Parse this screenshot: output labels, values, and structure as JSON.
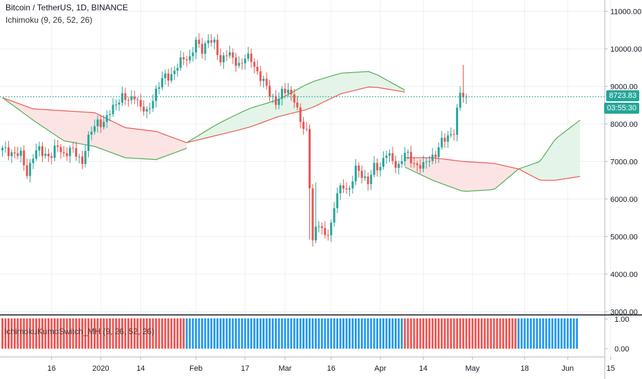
{
  "header": {
    "symbol_line": "Bitcoin / TetherUS, 1D, BINANCE",
    "indicator_line": "Ichimoku (9, 26, 52, 26)"
  },
  "lower_pane": {
    "title": "IchimokuKumoSwitch_MH (9, 26, 52, 26)",
    "ticks": [
      "1.00",
      "0.00"
    ]
  },
  "price_tags": {
    "last_price": "8723.83",
    "countdown": "03:55:30",
    "last_color": "#26a69a"
  },
  "colors": {
    "up": "#26a69a",
    "down": "#ef5350",
    "kumo_bull_fill": "#e4f4e8",
    "kumo_bear_fill": "#fce4e4",
    "span_a": "#4caf50",
    "span_b": "#ef5350",
    "switch_red": "#ef5350",
    "switch_blue": "#2196f3"
  },
  "chart_data": {
    "type": "candlestick",
    "title": "Bitcoin / TetherUS, 1D, BINANCE",
    "y_ticks": [
      3000,
      4000,
      5000,
      6000,
      7000,
      8000,
      9000,
      10000,
      11000
    ],
    "y_tick_labels": [
      "3000.00",
      "4000.00",
      "5000.00",
      "6000.00",
      "7000.00",
      "8000.00",
      "9000.00",
      "10000.00",
      "11000.00"
    ],
    "ylim": [
      2950,
      11300
    ],
    "x_ticks": [
      {
        "day": 16,
        "label": "16"
      },
      {
        "day": 32,
        "label": "2020"
      },
      {
        "day": 45,
        "label": "14"
      },
      {
        "day": 63,
        "label": "Feb"
      },
      {
        "day": 79,
        "label": "17"
      },
      {
        "day": 92,
        "label": "Mar"
      },
      {
        "day": 107,
        "label": "16"
      },
      {
        "day": 123,
        "label": "Apr"
      },
      {
        "day": 137,
        "label": "14"
      },
      {
        "day": 153,
        "label": "May"
      },
      {
        "day": 170,
        "label": "18"
      },
      {
        "day": 184,
        "label": "Jun"
      },
      {
        "day": 198,
        "label": "15"
      }
    ],
    "candle_anchors": [
      [
        0,
        7300
      ],
      [
        3,
        7250
      ],
      [
        6,
        7150
      ],
      [
        8,
        6700
      ],
      [
        10,
        7150
      ],
      [
        12,
        7300
      ],
      [
        14,
        7200
      ],
      [
        16,
        7150
      ],
      [
        18,
        7400
      ],
      [
        20,
        7200
      ],
      [
        22,
        7300
      ],
      [
        24,
        7200
      ],
      [
        26,
        7000
      ],
      [
        27,
        7350
      ],
      [
        29,
        7800
      ],
      [
        31,
        8100
      ],
      [
        33,
        8000
      ],
      [
        35,
        8300
      ],
      [
        37,
        8600
      ],
      [
        39,
        8700
      ],
      [
        41,
        8600
      ],
      [
        43,
        8800
      ],
      [
        45,
        8400
      ],
      [
        47,
        8300
      ],
      [
        49,
        8700
      ],
      [
        51,
        9000
      ],
      [
        53,
        9300
      ],
      [
        55,
        9300
      ],
      [
        57,
        9500
      ],
      [
        59,
        9800
      ],
      [
        61,
        9750
      ],
      [
        63,
        10150
      ],
      [
        65,
        10000
      ],
      [
        67,
        10250
      ],
      [
        69,
        10100
      ],
      [
        71,
        9700
      ],
      [
        73,
        9900
      ],
      [
        75,
        9700
      ],
      [
        77,
        9600
      ],
      [
        79,
        9750
      ],
      [
        81,
        9700
      ],
      [
        83,
        9400
      ],
      [
        85,
        9100
      ],
      [
        87,
        8800
      ],
      [
        89,
        8600
      ],
      [
        91,
        8800
      ],
      [
        93,
        8900
      ],
      [
        95,
        8700
      ],
      [
        97,
        8000
      ],
      [
        99,
        7800
      ],
      [
        101,
        5000
      ],
      [
        103,
        5300
      ],
      [
        105,
        5050
      ],
      [
        107,
        5300
      ],
      [
        109,
        6150
      ],
      [
        111,
        6400
      ],
      [
        113,
        6200
      ],
      [
        115,
        6800
      ],
      [
        117,
        6700
      ],
      [
        119,
        6400
      ],
      [
        121,
        6850
      ],
      [
        123,
        6900
      ],
      [
        125,
        7200
      ],
      [
        127,
        7000
      ],
      [
        129,
        6900
      ],
      [
        131,
        7200
      ],
      [
        133,
        7050
      ],
      [
        135,
        6900
      ],
      [
        137,
        6850
      ],
      [
        139,
        7100
      ],
      [
        141,
        7200
      ],
      [
        143,
        7500
      ],
      [
        145,
        7700
      ],
      [
        147,
        7800
      ],
      [
        149,
        8800
      ],
      [
        151,
        8723.83
      ]
    ],
    "kumo_segments": [
      {
        "from": 0,
        "to": 60,
        "span_a": [
          [
            0,
            8700
          ],
          [
            10,
            8100
          ],
          [
            20,
            7550
          ],
          [
            30,
            7400
          ],
          [
            40,
            7100
          ],
          [
            50,
            7050
          ],
          [
            60,
            7350
          ]
        ],
        "span_b": [
          [
            0,
            8700
          ],
          [
            10,
            8400
          ],
          [
            20,
            8350
          ],
          [
            30,
            8300
          ],
          [
            40,
            7900
          ],
          [
            50,
            7800
          ],
          [
            60,
            7500
          ]
        ]
      },
      {
        "from": 60,
        "to": 131,
        "span_a": [
          [
            60,
            7500
          ],
          [
            70,
            8000
          ],
          [
            80,
            8400
          ],
          [
            90,
            8650
          ],
          [
            100,
            9100
          ],
          [
            110,
            9350
          ],
          [
            120,
            9400
          ],
          [
            131,
            8900
          ]
        ],
        "span_b": [
          [
            60,
            7500
          ],
          [
            70,
            7700
          ],
          [
            80,
            7900
          ],
          [
            90,
            8200
          ],
          [
            100,
            8400
          ],
          [
            110,
            8800
          ],
          [
            120,
            9000
          ],
          [
            131,
            8850
          ]
        ]
      },
      {
        "from": 131,
        "to": 168,
        "span_a": [
          [
            131,
            6850
          ],
          [
            140,
            6500
          ],
          [
            150,
            6200
          ],
          [
            160,
            6250
          ],
          [
            168,
            6800
          ]
        ],
        "span_b": [
          [
            131,
            7100
          ],
          [
            140,
            7100
          ],
          [
            150,
            7000
          ],
          [
            160,
            6950
          ],
          [
            168,
            6800
          ]
        ]
      },
      {
        "from": 168,
        "to": 188,
        "span_a": [
          [
            168,
            6800
          ],
          [
            175,
            7000
          ],
          [
            180,
            7600
          ],
          [
            188,
            8100
          ]
        ],
        "span_b": [
          [
            168,
            6800
          ],
          [
            175,
            6500
          ],
          [
            180,
            6500
          ],
          [
            188,
            6600
          ]
        ]
      }
    ],
    "switch_bars": [
      {
        "from": 0,
        "to": 60,
        "value": 1,
        "color": "red"
      },
      {
        "from": 60,
        "to": 131,
        "value": 1,
        "color": "blue"
      },
      {
        "from": 131,
        "to": 168,
        "value": 1,
        "color": "red"
      },
      {
        "from": 168,
        "to": 188,
        "value": 1,
        "color": "blue"
      }
    ]
  }
}
